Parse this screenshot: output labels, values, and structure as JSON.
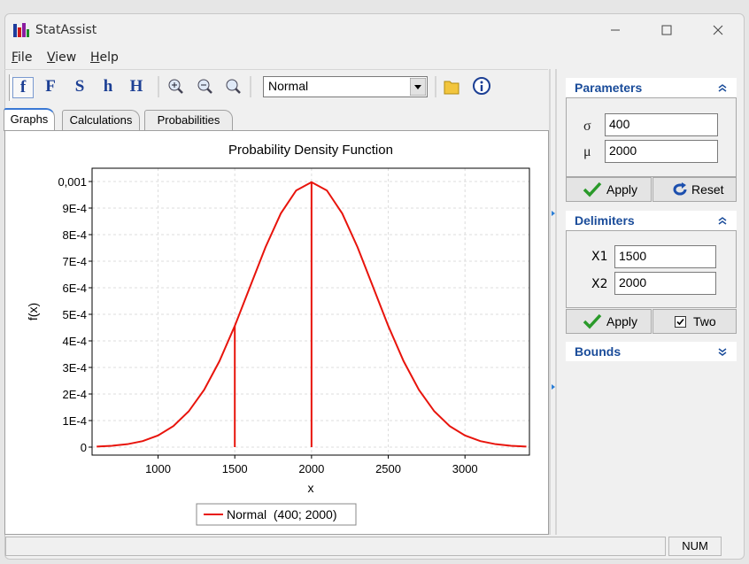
{
  "window": {
    "title": "StatAssist"
  },
  "menu": [
    "File",
    "View",
    "Help"
  ],
  "toolbar": {
    "buttons": [
      "f",
      "F",
      "S",
      "h",
      "H"
    ],
    "distribution": "Normal"
  },
  "tabs": [
    "Graphs",
    "Calculations",
    "Probabilities"
  ],
  "chart_data": {
    "type": "line",
    "title": "Probability Density Function",
    "x_label": "x",
    "y_label": "f(x)",
    "xlim": [
      570,
      3420
    ],
    "ylim": [
      -3e-05,
      0.00105
    ],
    "xticks": [
      1000,
      1500,
      2000,
      2500,
      3000
    ],
    "yticks": [
      0,
      {
        "value": 0.0001,
        "label": "1E-4"
      },
      {
        "value": 0.0002,
        "label": "2E-4"
      },
      {
        "value": 0.0003,
        "label": "3E-4"
      },
      {
        "value": 0.0004,
        "label": "4E-4"
      },
      {
        "value": 0.0005,
        "label": "5E-4"
      },
      {
        "value": 0.0006,
        "label": "6E-4"
      },
      {
        "value": 0.0007,
        "label": "7E-4"
      },
      {
        "value": 0.0008,
        "label": "8E-4"
      },
      {
        "value": 0.0009,
        "label": "9E-4"
      },
      {
        "value": 0.001,
        "label": "0,001"
      }
    ],
    "grid": true,
    "legend": "bottom",
    "series": [
      {
        "name": "Normal  (400; 2000)",
        "color": "#e8140c",
        "x": [
          600,
          700,
          800,
          900,
          1000,
          1100,
          1200,
          1300,
          1400,
          1500,
          1600,
          1700,
          1800,
          1900,
          2000,
          2100,
          2200,
          2300,
          2400,
          2500,
          2600,
          2700,
          2800,
          2900,
          3000,
          3100,
          3200,
          3300,
          3400
        ],
        "values": [
          2.18e-06,
          5.07e-06,
          1.108e-05,
          2.272e-05,
          4.381e-05,
          7.931e-05,
          0.00013493,
          0.00021562,
          0.00032368,
          0.00045646,
          0.00060471,
          0.00075258,
          0.00087985,
          0.00096633,
          0.00099736,
          0.00096633,
          0.00087985,
          0.00075258,
          0.00060471,
          0.00045646,
          0.00032368,
          0.00021562,
          0.00013493,
          7.931e-05,
          4.381e-05,
          2.272e-05,
          1.108e-05,
          5.07e-06,
          2.18e-06
        ]
      }
    ]
  },
  "parameters": {
    "title": "Parameters",
    "sigma_label": "σ",
    "sigma": 400,
    "mu_label": "μ",
    "mu": 2000,
    "apply": "Apply",
    "reset": "Reset"
  },
  "delimiters": {
    "title": "Delimiters",
    "x1_label": "X1",
    "x1": 1500,
    "x2_label": "X2",
    "x2": 2000,
    "apply": "Apply",
    "two": "Two",
    "two_checked": true
  },
  "bounds": {
    "title": "Bounds"
  },
  "status": "NUM"
}
